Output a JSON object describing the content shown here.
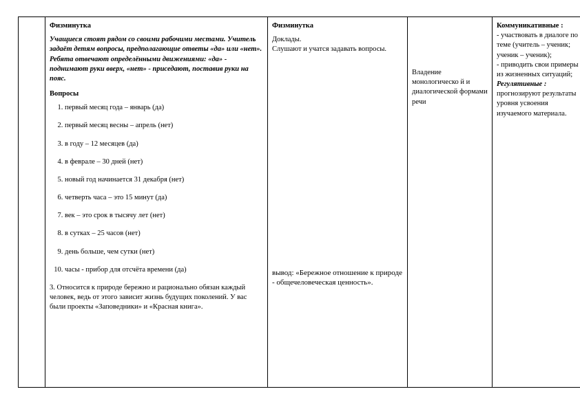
{
  "col1": {
    "h1": "Физминутка",
    "intro": "Учащиеся стоят рядом со своими рабочими местами. Учитель задаёт детям вопросы, предполагающие ответы «да» или «нет». Ребята отвечают определёнными движениями: «да» - поднимают руки вверх, «нет» - приседают, поставив руки на пояс.",
    "h2": "Вопросы",
    "q": [
      "первый месяц года – январь (да)",
      "первый месяц весны – апрель (нет)",
      "в году – 12 месяцев (да)",
      "в феврале – 30 дней (нет)",
      "новый год начинается 31 декабря (нет)",
      "четверть часа – это 15 минут (да)",
      "век – это срок в тысячу лет (нет)",
      "в сутках – 25 часов (нет)",
      "день больше, чем сутки (нет)",
      "часы - прибор для отсчёта времени (да)"
    ],
    "p3": "3. Относится к природе бережно и рационально обязан каждый человек, ведь от этого зависит жизнь будущих поколений. У вас были проекты «Заповедники» и «Красная книга»."
  },
  "col2": {
    "h1": "Физминутка",
    "l1": "Доклады.",
    "l2": "Слушают и учатся задавать вопросы.",
    "bottom": "вывод: «Бережное отношение к природе - общечеловеческая ценность»."
  },
  "col3": {
    "text": "Владение монологическо й и диалогической формами речи"
  },
  "col4": {
    "h1": "Коммуникативные :",
    "l1": "- участвовать в диалоге по теме (учитель – ученик; ученик – ученик);",
    "l2": "- приводить свои примеры из жизненных ситуаций;",
    "h2": "Регулятивные :",
    "l3": "прогнозируют результаты уровня усвоения изучаемого материала."
  }
}
